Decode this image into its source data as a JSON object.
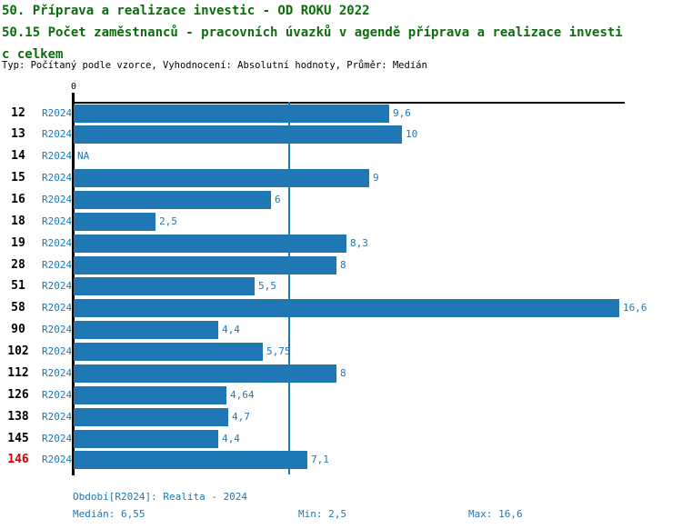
{
  "header": {
    "title_line1": "50. Příprava a realizace investic - OD ROKU 2022",
    "title_line2": "50.15 Počet zaměstnanců - pracovních úvazků v agendě příprava a realizace investi",
    "title_line3": "c celkem",
    "meta": "Typ: Počítaný podle vzorce, Vyhodnocení: Absolutní hodnoty, Průměr: Medián"
  },
  "chart_data": {
    "type": "bar",
    "orientation": "horizontal",
    "series_label": "R2024",
    "categories": [
      "12",
      "13",
      "14",
      "15",
      "16",
      "18",
      "19",
      "28",
      "51",
      "58",
      "90",
      "102",
      "112",
      "126",
      "138",
      "145",
      "146"
    ],
    "values": [
      9.6,
      10,
      null,
      9,
      6,
      2.5,
      8.3,
      8,
      5.5,
      16.6,
      4.4,
      5.75,
      8,
      4.64,
      4.7,
      4.4,
      7.1
    ],
    "value_labels": [
      "9,6",
      "10",
      "NA",
      "9",
      "6",
      "2,5",
      "8,3",
      "8",
      "5,5",
      "16,6",
      "4,4",
      "5,75",
      "8",
      "4,64",
      "4,7",
      "4,4",
      "7,1"
    ],
    "highlighted_category": "146",
    "median": 6.55,
    "x_axis_tick_label": "0",
    "xlim": [
      0,
      16.77
    ],
    "grid": false,
    "median_line": true
  },
  "footer": {
    "period": "Období[R2024]: Realita - 2024",
    "median": "Medián: 6,55",
    "min": "Min: 2,5",
    "max": "Max: 16,6"
  },
  "colors": {
    "title_green": "#0b6d0b",
    "bar_blue": "#1f77b4",
    "label_blue": "#1f77b4",
    "highlight_red": "#d40000",
    "axis_black": "#000000"
  }
}
